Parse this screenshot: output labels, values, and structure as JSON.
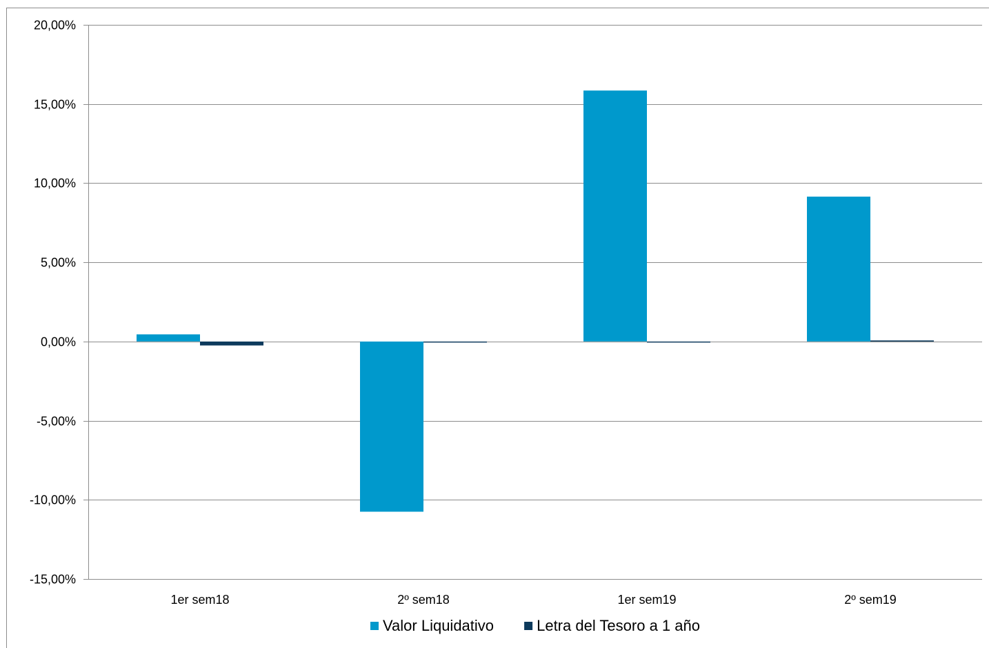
{
  "chart_data": {
    "type": "bar",
    "title": "",
    "xlabel": "",
    "ylabel": "",
    "categories": [
      "1er sem18",
      "2º sem18",
      "1er sem19",
      "2º sem19"
    ],
    "series": [
      {
        "name": "Valor Liquidativo",
        "color": "#0099cc",
        "values": [
          0.45,
          -10.75,
          15.85,
          9.15
        ]
      },
      {
        "name": "Letra del Tesoro a 1 año",
        "color": "#0d3a5c",
        "values": [
          -0.25,
          -0.05,
          -0.02,
          0.07
        ]
      }
    ],
    "ylim": [
      -15,
      20
    ],
    "yticks": [
      20,
      15,
      10,
      5,
      0,
      -5,
      -10,
      -15
    ],
    "ytick_labels": [
      "20,00%",
      "15,00%",
      "10,00%",
      "5,00%",
      "0,00%",
      "-5,00%",
      "-10,00%",
      "-15,00%"
    ],
    "grid": true,
    "legend_position": "bottom"
  }
}
